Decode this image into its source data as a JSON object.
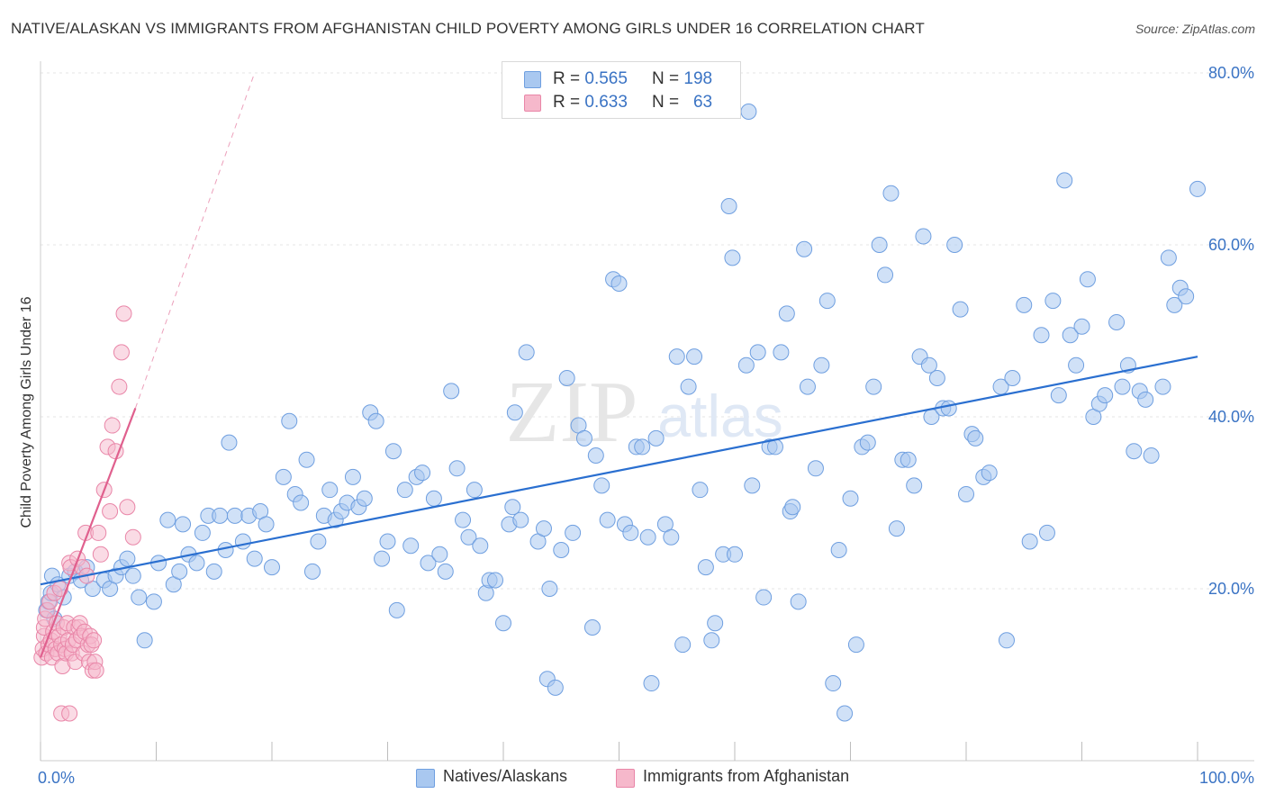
{
  "title": "NATIVE/ALASKAN VS IMMIGRANTS FROM AFGHANISTAN CHILD POVERTY AMONG GIRLS UNDER 16 CORRELATION CHART",
  "source": "Source: ZipAtlas.com",
  "watermark": {
    "zip": "ZIP",
    "atlas": "atlas"
  },
  "legend": {
    "rows": [
      {
        "r_label": "R =",
        "r_value": "0.565",
        "n_label": "N =",
        "n_value": "198",
        "color": "#a9c8f0",
        "border": "#6f9fe0"
      },
      {
        "r_label": "R =",
        "r_value": "0.633",
        "n_label": "N =",
        "n_value": "63",
        "color": "#f6b8cb",
        "border": "#e986a8"
      }
    ]
  },
  "bottom_legend": [
    {
      "label": "Natives/Alaskans",
      "color": "#a9c8f0",
      "border": "#6f9fe0"
    },
    {
      "label": "Immigrants from Afghanistan",
      "color": "#f6b8cb",
      "border": "#e986a8"
    }
  ],
  "chart_data": {
    "type": "scatter",
    "xlabel": "",
    "ylabel": "Child Poverty Among Girls Under 16",
    "xlim": [
      0,
      100
    ],
    "ylim": [
      0,
      83
    ],
    "x_tick_labels": [
      {
        "value": 0,
        "label": "0.0%"
      },
      {
        "value": 100,
        "label": "100.0%"
      }
    ],
    "y_tick_labels": [
      {
        "value": 20,
        "label": "20.0%"
      },
      {
        "value": 40,
        "label": "40.0%"
      },
      {
        "value": 60,
        "label": "60.0%"
      },
      {
        "value": 80,
        "label": "80.0%"
      }
    ],
    "grid": true,
    "colors": {
      "blue_fill": "#a9c8f0",
      "blue_stroke": "#6f9fe0",
      "blue_line": "#2a6fd0",
      "pink_fill": "#f6b8cb",
      "pink_stroke": "#e986a8",
      "pink_line": "#e0608e"
    },
    "series": [
      {
        "name": "Natives/Alaskans",
        "trend": {
          "x0": 0,
          "y0": 20.5,
          "x1": 100,
          "y1": 47
        },
        "points": [
          [
            0.5,
            17.5
          ],
          [
            0.7,
            18.5
          ],
          [
            0.9,
            19.5
          ],
          [
            1.0,
            21.5
          ],
          [
            1.2,
            16.5
          ],
          [
            1.5,
            20.5
          ],
          [
            2.0,
            19.0
          ],
          [
            2.5,
            21.5
          ],
          [
            3.0,
            22.0
          ],
          [
            3.5,
            21.0
          ],
          [
            4.0,
            22.5
          ],
          [
            4.5,
            20.0
          ],
          [
            5.5,
            21.0
          ],
          [
            6.0,
            20.0
          ],
          [
            6.5,
            21.5
          ],
          [
            7.0,
            22.5
          ],
          [
            7.5,
            23.5
          ],
          [
            8.0,
            21.5
          ],
          [
            8.5,
            19.0
          ],
          [
            9.0,
            14.0
          ],
          [
            9.8,
            18.5
          ],
          [
            10.2,
            23.0
          ],
          [
            11.0,
            28.0
          ],
          [
            11.5,
            20.5
          ],
          [
            12.0,
            22.0
          ],
          [
            12.3,
            27.5
          ],
          [
            12.8,
            24.0
          ],
          [
            13.5,
            23.0
          ],
          [
            14.0,
            26.5
          ],
          [
            14.5,
            28.5
          ],
          [
            15.0,
            22.0
          ],
          [
            15.5,
            28.5
          ],
          [
            16.0,
            24.5
          ],
          [
            16.3,
            37.0
          ],
          [
            16.8,
            28.5
          ],
          [
            17.5,
            25.5
          ],
          [
            18.0,
            28.5
          ],
          [
            18.5,
            23.5
          ],
          [
            19.0,
            29.0
          ],
          [
            19.5,
            27.5
          ],
          [
            20.0,
            22.5
          ],
          [
            21.0,
            33.0
          ],
          [
            21.5,
            39.5
          ],
          [
            22.0,
            31.0
          ],
          [
            22.5,
            30.0
          ],
          [
            23.0,
            35.0
          ],
          [
            23.5,
            22.0
          ],
          [
            24.0,
            25.5
          ],
          [
            24.5,
            28.5
          ],
          [
            25.0,
            31.5
          ],
          [
            25.5,
            28.0
          ],
          [
            26.0,
            29.0
          ],
          [
            26.5,
            30.0
          ],
          [
            27.0,
            33.0
          ],
          [
            27.5,
            29.5
          ],
          [
            28.0,
            30.5
          ],
          [
            28.5,
            40.5
          ],
          [
            29.0,
            39.5
          ],
          [
            29.5,
            23.5
          ],
          [
            30.0,
            25.5
          ],
          [
            30.5,
            36.0
          ],
          [
            30.8,
            17.5
          ],
          [
            31.5,
            31.5
          ],
          [
            32.0,
            25.0
          ],
          [
            32.5,
            33.0
          ],
          [
            33.0,
            33.5
          ],
          [
            33.5,
            23.0
          ],
          [
            34.0,
            30.5
          ],
          [
            34.5,
            24.0
          ],
          [
            35.0,
            22.0
          ],
          [
            35.5,
            43.0
          ],
          [
            36.0,
            34.0
          ],
          [
            36.5,
            28.0
          ],
          [
            37.0,
            26.0
          ],
          [
            37.5,
            31.5
          ],
          [
            38.0,
            25.0
          ],
          [
            38.5,
            19.5
          ],
          [
            38.8,
            21.0
          ],
          [
            39.3,
            21.0
          ],
          [
            40.0,
            16.0
          ],
          [
            40.5,
            27.5
          ],
          [
            40.8,
            29.5
          ],
          [
            41.0,
            40.5
          ],
          [
            41.5,
            28.0
          ],
          [
            42.0,
            47.5
          ],
          [
            43.0,
            25.5
          ],
          [
            43.5,
            27.0
          ],
          [
            43.8,
            9.5
          ],
          [
            44.0,
            20.0
          ],
          [
            44.5,
            8.5
          ],
          [
            45.0,
            24.5
          ],
          [
            45.5,
            44.5
          ],
          [
            46.0,
            26.5
          ],
          [
            46.5,
            39.0
          ],
          [
            47.0,
            37.5
          ],
          [
            47.7,
            15.5
          ],
          [
            48.0,
            35.5
          ],
          [
            48.5,
            32.0
          ],
          [
            49.0,
            28.0
          ],
          [
            49.5,
            56.0
          ],
          [
            50.0,
            55.5
          ],
          [
            50.5,
            27.5
          ],
          [
            51.0,
            26.5
          ],
          [
            51.5,
            36.5
          ],
          [
            52.0,
            36.5
          ],
          [
            52.5,
            26.0
          ],
          [
            52.8,
            9.0
          ],
          [
            53.2,
            37.5
          ],
          [
            54.0,
            27.5
          ],
          [
            54.5,
            26.0
          ],
          [
            55.0,
            47.0
          ],
          [
            55.5,
            13.5
          ],
          [
            56.0,
            43.5
          ],
          [
            56.5,
            47.0
          ],
          [
            57.0,
            31.5
          ],
          [
            57.5,
            22.5
          ],
          [
            58.0,
            14.0
          ],
          [
            58.3,
            16.0
          ],
          [
            59.0,
            24.0
          ],
          [
            59.5,
            64.5
          ],
          [
            59.8,
            58.5
          ],
          [
            60.0,
            24.0
          ],
          [
            61.0,
            46.0
          ],
          [
            61.5,
            32.0
          ],
          [
            62.0,
            47.5
          ],
          [
            62.5,
            19.0
          ],
          [
            63.0,
            36.5
          ],
          [
            63.5,
            36.5
          ],
          [
            64.0,
            47.5
          ],
          [
            64.5,
            52.0
          ],
          [
            64.8,
            29.0
          ],
          [
            65.0,
            29.5
          ],
          [
            65.5,
            18.5
          ],
          [
            66.0,
            59.5
          ],
          [
            66.3,
            43.5
          ],
          [
            67.0,
            34.0
          ],
          [
            67.5,
            46.0
          ],
          [
            68.0,
            53.5
          ],
          [
            68.5,
            9.0
          ],
          [
            69.0,
            24.5
          ],
          [
            69.5,
            5.5
          ],
          [
            70.0,
            30.5
          ],
          [
            70.5,
            13.5
          ],
          [
            71.0,
            36.5
          ],
          [
            71.5,
            37.0
          ],
          [
            72.0,
            43.5
          ],
          [
            72.5,
            60.0
          ],
          [
            73.0,
            56.5
          ],
          [
            73.5,
            66.0
          ],
          [
            74.0,
            27.0
          ],
          [
            74.5,
            35.0
          ],
          [
            75.0,
            35.0
          ],
          [
            75.5,
            32.0
          ],
          [
            76.0,
            47.0
          ],
          [
            76.3,
            61.0
          ],
          [
            76.8,
            46.0
          ],
          [
            77.0,
            40.0
          ],
          [
            77.5,
            44.5
          ],
          [
            78.0,
            41.0
          ],
          [
            78.5,
            41.0
          ],
          [
            79.0,
            60.0
          ],
          [
            79.5,
            52.5
          ],
          [
            80.0,
            31.0
          ],
          [
            80.5,
            38.0
          ],
          [
            80.8,
            37.5
          ],
          [
            81.5,
            33.0
          ],
          [
            82.0,
            33.5
          ],
          [
            83.0,
            43.5
          ],
          [
            83.5,
            14.0
          ],
          [
            84.0,
            44.5
          ],
          [
            85.0,
            53.0
          ],
          [
            85.5,
            25.5
          ],
          [
            86.5,
            49.5
          ],
          [
            87.0,
            26.5
          ],
          [
            87.5,
            53.5
          ],
          [
            88.0,
            42.5
          ],
          [
            88.5,
            67.5
          ],
          [
            89.0,
            49.5
          ],
          [
            89.5,
            46.0
          ],
          [
            90.0,
            50.5
          ],
          [
            90.5,
            56.0
          ],
          [
            91.0,
            40.0
          ],
          [
            91.5,
            41.5
          ],
          [
            92.0,
            42.5
          ],
          [
            93.0,
            51.0
          ],
          [
            93.5,
            43.5
          ],
          [
            94.0,
            46.0
          ],
          [
            94.5,
            36.0
          ],
          [
            95.0,
            43.0
          ],
          [
            95.5,
            42.0
          ],
          [
            96.0,
            35.5
          ],
          [
            97.0,
            43.5
          ],
          [
            97.5,
            58.5
          ],
          [
            98.0,
            53.0
          ],
          [
            98.5,
            55.0
          ],
          [
            99.0,
            54.0
          ],
          [
            100.0,
            66.5
          ],
          [
            61.2,
            75.5
          ]
        ]
      },
      {
        "name": "Immigrants from Afghanistan",
        "trend": {
          "x0": 0,
          "y0": 12,
          "x1": 8.2,
          "y1": 41
        },
        "trend_ext": {
          "x0": 8.2,
          "y0": 41,
          "x1": 18.5,
          "y1": 80
        },
        "points": [
          [
            0.1,
            12.0
          ],
          [
            0.2,
            13.0
          ],
          [
            0.3,
            14.5
          ],
          [
            0.3,
            15.5
          ],
          [
            0.4,
            16.5
          ],
          [
            0.5,
            12.5
          ],
          [
            0.6,
            17.5
          ],
          [
            0.7,
            13.5
          ],
          [
            0.8,
            18.5
          ],
          [
            0.9,
            14.0
          ],
          [
            1.0,
            12.0
          ],
          [
            1.1,
            15.0
          ],
          [
            1.2,
            19.5
          ],
          [
            1.3,
            13.0
          ],
          [
            1.4,
            16.0
          ],
          [
            1.5,
            12.5
          ],
          [
            1.6,
            14.5
          ],
          [
            1.7,
            20.0
          ],
          [
            1.8,
            13.5
          ],
          [
            1.9,
            11.0
          ],
          [
            2.0,
            15.5
          ],
          [
            2.1,
            13.0
          ],
          [
            2.2,
            12.5
          ],
          [
            2.3,
            16.0
          ],
          [
            2.4,
            14.0
          ],
          [
            2.5,
            23.0
          ],
          [
            2.6,
            22.5
          ],
          [
            2.7,
            12.5
          ],
          [
            2.8,
            13.5
          ],
          [
            2.9,
            15.5
          ],
          [
            3.0,
            11.5
          ],
          [
            3.1,
            14.0
          ],
          [
            3.2,
            23.5
          ],
          [
            3.3,
            15.5
          ],
          [
            3.4,
            16.0
          ],
          [
            3.5,
            14.5
          ],
          [
            3.6,
            22.5
          ],
          [
            3.7,
            12.5
          ],
          [
            3.8,
            15.0
          ],
          [
            3.9,
            26.5
          ],
          [
            4.0,
            21.5
          ],
          [
            4.1,
            13.5
          ],
          [
            4.2,
            11.5
          ],
          [
            4.3,
            14.5
          ],
          [
            4.4,
            13.5
          ],
          [
            4.5,
            10.5
          ],
          [
            4.6,
            14.0
          ],
          [
            4.7,
            11.5
          ],
          [
            4.8,
            10.5
          ],
          [
            5.0,
            26.5
          ],
          [
            5.2,
            24.0
          ],
          [
            5.5,
            31.5
          ],
          [
            5.8,
            36.5
          ],
          [
            6.0,
            29.0
          ],
          [
            6.2,
            39.0
          ],
          [
            6.5,
            36.0
          ],
          [
            6.8,
            43.5
          ],
          [
            7.0,
            47.5
          ],
          [
            7.2,
            52.0
          ],
          [
            7.5,
            29.5
          ],
          [
            8.0,
            26.0
          ],
          [
            1.8,
            5.5
          ],
          [
            2.5,
            5.5
          ]
        ]
      }
    ]
  }
}
